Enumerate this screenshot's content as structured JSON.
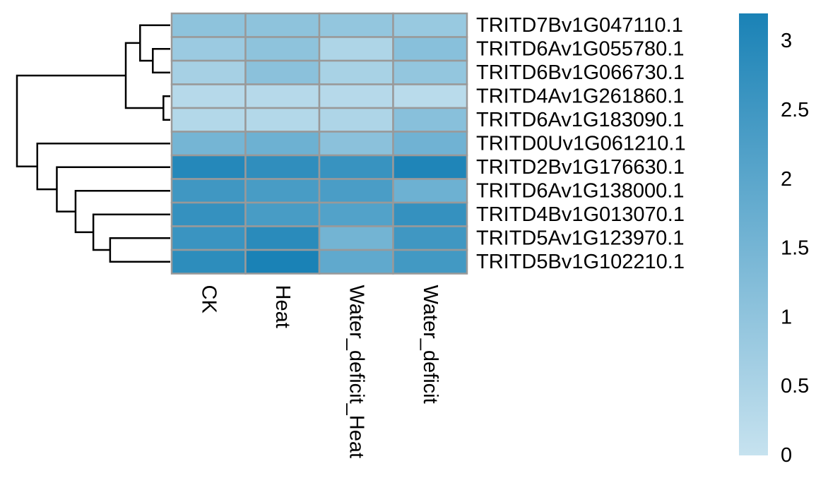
{
  "chart_data": {
    "type": "heatmap",
    "rows": [
      "TRITD7Bv1G047110.1",
      "TRITD6Av1G055780.1",
      "TRITD6Bv1G066730.1",
      "TRITD4Av1G261860.1",
      "TRITD6Av1G183090.1",
      "TRITD0Uv1G061210.1",
      "TRITD2Bv1G176630.1",
      "TRITD6Av1G138000.1",
      "TRITD4Bv1G013070.1",
      "TRITD5Av1G123970.1",
      "TRITD5Bv1G102210.1"
    ],
    "columns": [
      "CK",
      "Heat",
      "Water_deficit_Heat",
      "Water_deficit"
    ],
    "values": [
      [
        1.05,
        1.05,
        0.95,
        0.85
      ],
      [
        0.8,
        1.05,
        0.45,
        1.15
      ],
      [
        0.6,
        1.1,
        0.55,
        0.95
      ],
      [
        0.3,
        0.3,
        0.3,
        0.25
      ],
      [
        0.35,
        0.35,
        0.45,
        1.15
      ],
      [
        1.5,
        1.65,
        1.1,
        1.6
      ],
      [
        3.0,
        2.8,
        2.65,
        3.1
      ],
      [
        2.5,
        2.35,
        2.3,
        1.65
      ],
      [
        2.7,
        2.35,
        2.15,
        2.7
      ],
      [
        2.6,
        2.9,
        1.55,
        2.5
      ],
      [
        2.85,
        3.2,
        1.9,
        2.45
      ]
    ],
    "row_dendrogram": [
      [
        3,
        4
      ],
      [
        1,
        2
      ],
      [
        0,
        -2
      ],
      [
        -3,
        -1
      ],
      [
        9,
        10
      ],
      [
        8,
        -5
      ],
      [
        7,
        -6
      ],
      [
        6,
        -7
      ],
      [
        5,
        -8
      ],
      [
        -4,
        -9
      ]
    ],
    "colorbar": {
      "min": 0,
      "max": 3.2,
      "ticks": [
        0,
        0.5,
        1,
        1.5,
        2,
        2.5,
        3
      ],
      "tick_labels": [
        "0",
        "0.5",
        "1",
        "1.5",
        "2",
        "2.5",
        "3"
      ],
      "color_low": "#c6e2ef",
      "color_high": "#1a82b6"
    },
    "grid_color": "#999999",
    "title": "",
    "xlabel": "",
    "ylabel": ""
  }
}
